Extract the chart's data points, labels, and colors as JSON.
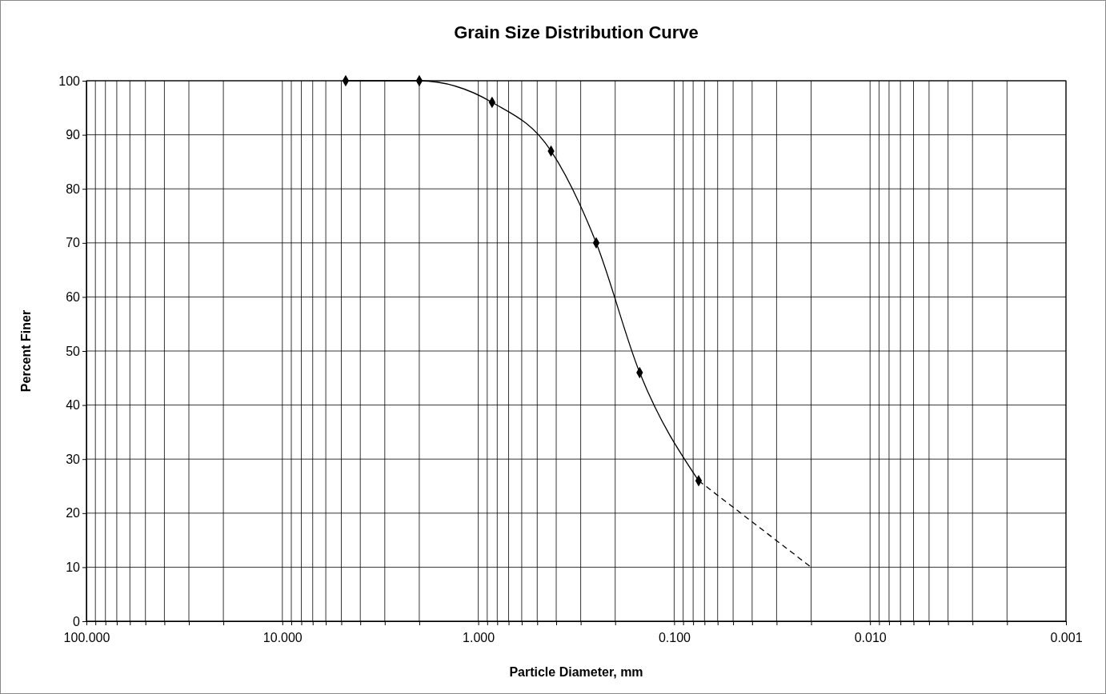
{
  "chart_data": {
    "type": "line",
    "title": "Grain Size Distribution Curve",
    "xlabel": "Particle Diameter, mm",
    "ylabel": "Percent Finer",
    "log": "x",
    "grid": true,
    "xlim": [
      100,
      0.001
    ],
    "ylim": [
      0,
      100
    ],
    "xticks": [
      {
        "value": 100,
        "label": "100.000"
      },
      {
        "value": 90,
        "label": null
      },
      {
        "value": 80,
        "label": null
      },
      {
        "value": 70,
        "label": null
      },
      {
        "value": 60,
        "label": null
      },
      {
        "value": 50,
        "label": null
      },
      {
        "value": 40,
        "label": null
      },
      {
        "value": 30,
        "label": null
      },
      {
        "value": 20,
        "label": null
      },
      {
        "value": 10,
        "label": "10.000"
      },
      {
        "value": 9,
        "label": null
      },
      {
        "value": 8,
        "label": null
      },
      {
        "value": 7,
        "label": null
      },
      {
        "value": 6,
        "label": null
      },
      {
        "value": 5,
        "label": null
      },
      {
        "value": 4,
        "label": null
      },
      {
        "value": 3,
        "label": null
      },
      {
        "value": 2,
        "label": null
      },
      {
        "value": 1,
        "label": "1.000"
      },
      {
        "value": 0.9,
        "label": null
      },
      {
        "value": 0.8,
        "label": null
      },
      {
        "value": 0.7,
        "label": null
      },
      {
        "value": 0.6,
        "label": null
      },
      {
        "value": 0.5,
        "label": null
      },
      {
        "value": 0.4,
        "label": null
      },
      {
        "value": 0.3,
        "label": null
      },
      {
        "value": 0.2,
        "label": null
      },
      {
        "value": 0.1,
        "label": "0.100"
      },
      {
        "value": 0.09,
        "label": null
      },
      {
        "value": 0.08,
        "label": null
      },
      {
        "value": 0.07,
        "label": null
      },
      {
        "value": 0.06,
        "label": null
      },
      {
        "value": 0.05,
        "label": null
      },
      {
        "value": 0.04,
        "label": null
      },
      {
        "value": 0.03,
        "label": null
      },
      {
        "value": 0.02,
        "label": null
      },
      {
        "value": 0.01,
        "label": "0.010"
      },
      {
        "value": 0.009,
        "label": null
      },
      {
        "value": 0.008,
        "label": null
      },
      {
        "value": 0.007,
        "label": null
      },
      {
        "value": 0.006,
        "label": null
      },
      {
        "value": 0.005,
        "label": null
      },
      {
        "value": 0.004,
        "label": null
      },
      {
        "value": 0.003,
        "label": null
      },
      {
        "value": 0.002,
        "label": null
      },
      {
        "value": 0.001,
        "label": "0.001"
      }
    ],
    "yticks": [
      0,
      10,
      20,
      30,
      40,
      50,
      60,
      70,
      80,
      90,
      100
    ],
    "series": [
      {
        "color": "#000000",
        "marker": "diamond",
        "line_style": "solid",
        "x": [
          4.75,
          2,
          0.85,
          0.425,
          0.25,
          0.15,
          0.075
        ],
        "values": [
          100,
          100,
          96,
          87,
          70,
          46,
          26
        ]
      },
      {
        "color": "#000000",
        "marker": "none",
        "line_style": "dashed",
        "x": [
          0.075,
          0.02
        ],
        "values": [
          26,
          10
        ]
      }
    ]
  }
}
